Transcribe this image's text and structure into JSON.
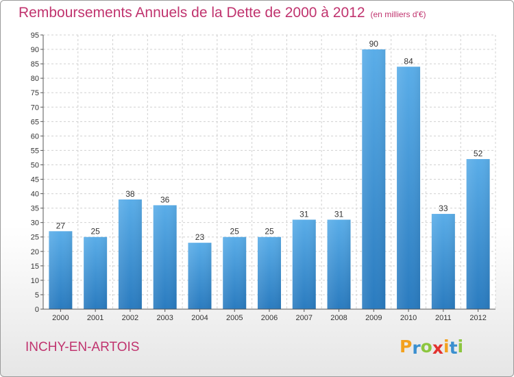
{
  "header": {
    "title": "Remboursements Annuels de la Dette de 2000 à 2012",
    "unit": "(en milliers d'€)"
  },
  "footer": {
    "town": "INCHY-EN-ARTOIS",
    "logo_letters": [
      "P",
      "r",
      "o",
      "x",
      "i",
      "t",
      "i"
    ],
    "logo_colors": [
      "#f3a11f",
      "#3a8fcf",
      "#8cc63f",
      "#e2322e",
      "#f3a11f",
      "#3a8fcf",
      "#8cc63f"
    ]
  },
  "chart_data": {
    "type": "bar",
    "title": "Remboursements Annuels de la Dette de 2000 à 2012",
    "categories": [
      "2000",
      "2001",
      "2002",
      "2003",
      "2004",
      "2005",
      "2006",
      "2007",
      "2008",
      "2009",
      "2010",
      "2011",
      "2012"
    ],
    "values": [
      27,
      25,
      38,
      36,
      23,
      25,
      25,
      31,
      31,
      90,
      84,
      33,
      52
    ],
    "ylim": [
      0,
      95
    ],
    "yticks": [
      0,
      5,
      10,
      15,
      20,
      25,
      30,
      35,
      40,
      45,
      50,
      55,
      60,
      65,
      70,
      75,
      80,
      85,
      90,
      95
    ],
    "grid": true,
    "bar_color_top": "#5aade8",
    "bar_color_bottom": "#2a7bbf"
  }
}
